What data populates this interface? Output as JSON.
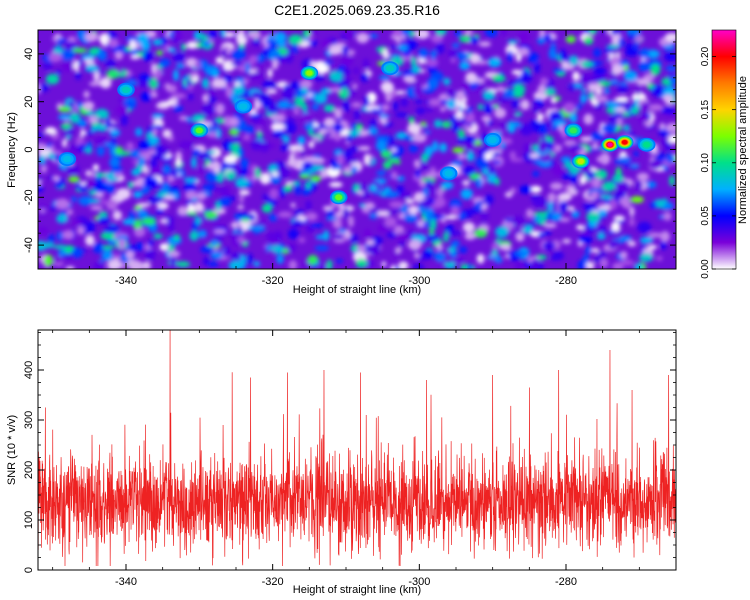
{
  "figure": {
    "title": "C2E1.2025.069.23.35.R16"
  },
  "chart_data": [
    {
      "type": "heatmap",
      "xlabel": "Height of straight line (km)",
      "ylabel": "Frequency (Hz)",
      "xlim": [
        -352,
        -265
      ],
      "ylim": [
        -50,
        50
      ],
      "xticks": [
        -340,
        -320,
        -300,
        -280
      ],
      "yticks": [
        -40,
        -20,
        0,
        20,
        40
      ],
      "colorbar": {
        "label": "Normalized spectral amplitude",
        "range": [
          0.0,
          0.225
        ],
        "ticks": [
          "0.00",
          "0.05",
          "0.10",
          "0.15",
          "0.20"
        ],
        "colormap": [
          "#ffffff",
          "#7a00d9",
          "#0000ff",
          "#00b0ff",
          "#00e08a",
          "#7cff00",
          "#ffd400",
          "#ff7a00",
          "#ff0000",
          "#ff00c8"
        ]
      },
      "hot_spots": [
        {
          "x": -274,
          "y": 2,
          "v": 0.22
        },
        {
          "x": -272,
          "y": 3,
          "v": 0.2
        },
        {
          "x": -278,
          "y": -5,
          "v": 0.14
        },
        {
          "x": -315,
          "y": 32,
          "v": 0.13
        },
        {
          "x": -311,
          "y": -20,
          "v": 0.12
        },
        {
          "x": -330,
          "y": 8,
          "v": 0.12
        },
        {
          "x": -279,
          "y": 8,
          "v": 0.11
        },
        {
          "x": -269,
          "y": 2,
          "v": 0.1
        },
        {
          "x": -340,
          "y": 25,
          "v": 0.09
        },
        {
          "x": -304,
          "y": 34,
          "v": 0.09
        },
        {
          "x": -324,
          "y": 18,
          "v": 0.08
        },
        {
          "x": -296,
          "y": -10,
          "v": 0.08
        },
        {
          "x": -290,
          "y": 4,
          "v": 0.08
        },
        {
          "x": -348,
          "y": -4,
          "v": 0.08
        }
      ]
    },
    {
      "type": "line",
      "xlabel": "Height of straight line (km)",
      "ylabel": "SNR (10 * v/v)",
      "xlim": [
        -352,
        -265
      ],
      "ylim": [
        0,
        480
      ],
      "xticks": [
        -340,
        -320,
        -300,
        -280
      ],
      "yticks": [
        0,
        100,
        200,
        300,
        400
      ],
      "color": "#ee2222",
      "mean": 135,
      "sd": 48,
      "peaks": [
        {
          "x": -351,
          "y": 325
        },
        {
          "x": -334,
          "y": 480
        },
        {
          "x": -323,
          "y": 385
        },
        {
          "x": -318,
          "y": 395
        },
        {
          "x": -313,
          "y": 400
        },
        {
          "x": -308,
          "y": 395
        },
        {
          "x": -299,
          "y": 380
        },
        {
          "x": -290,
          "y": 390
        },
        {
          "x": -285,
          "y": 365
        },
        {
          "x": -281,
          "y": 400
        },
        {
          "x": -274,
          "y": 440
        },
        {
          "x": -271,
          "y": 360
        },
        {
          "x": -266,
          "y": 390
        }
      ]
    }
  ]
}
